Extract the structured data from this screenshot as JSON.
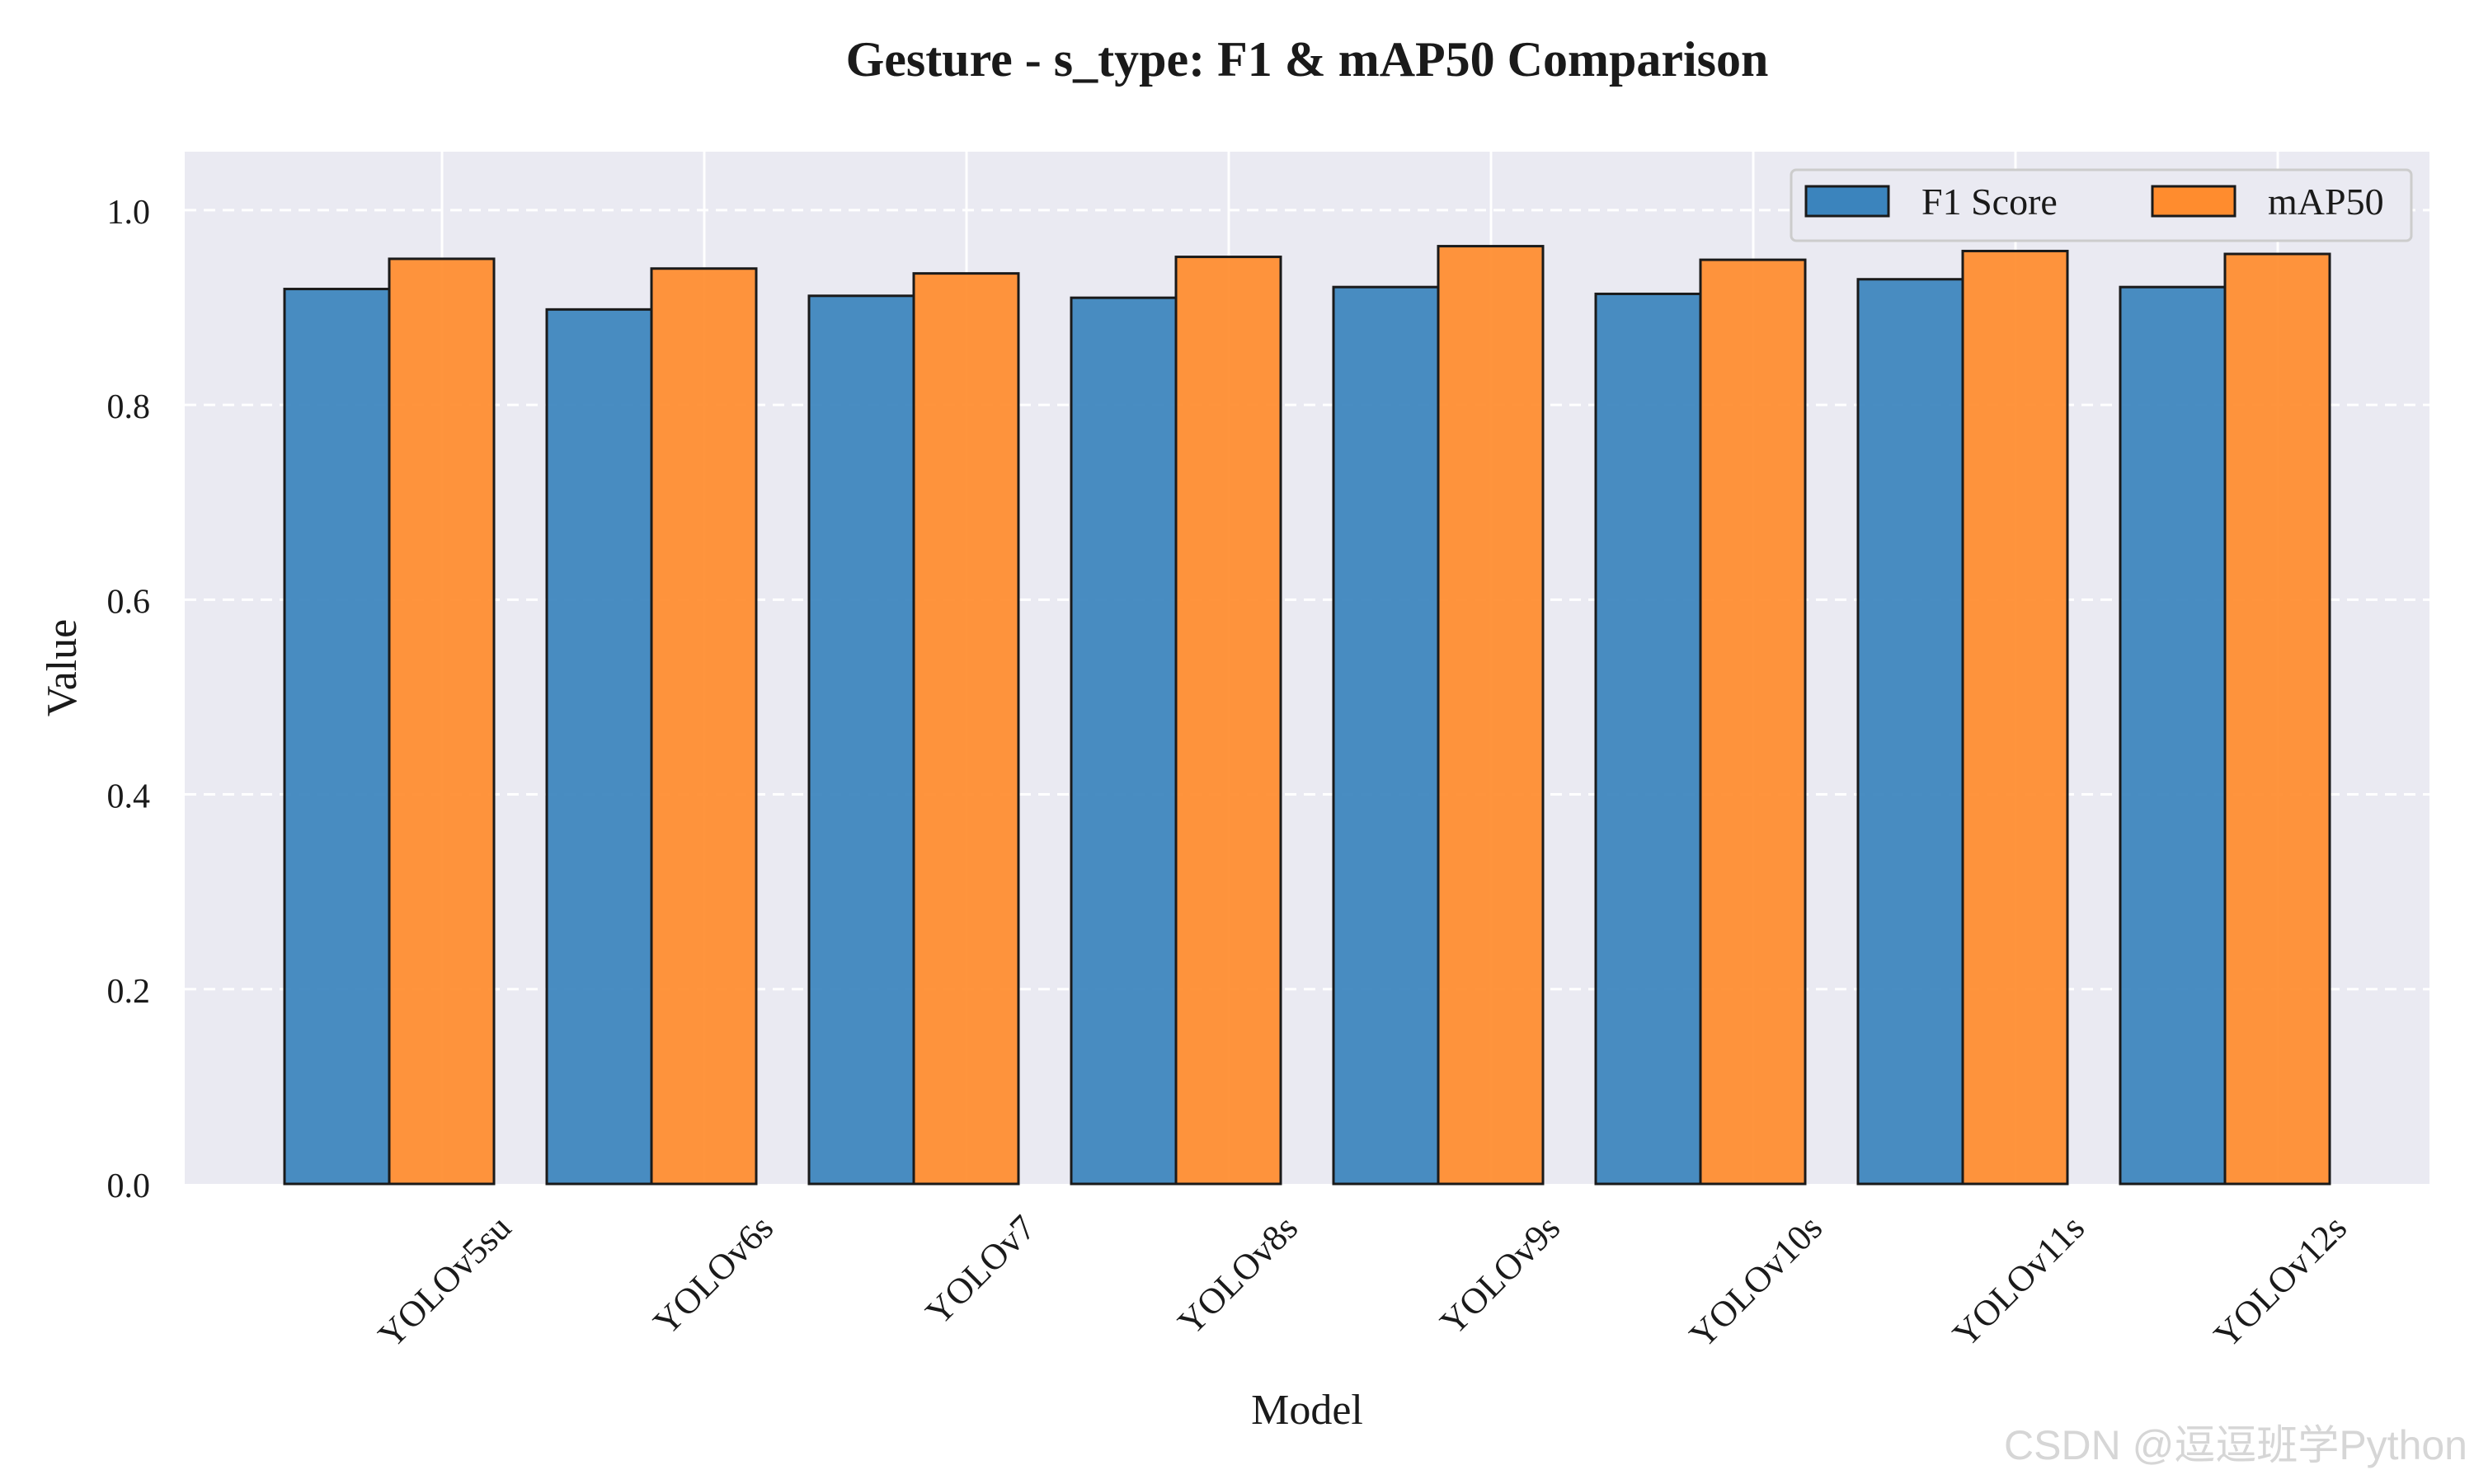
{
  "chart_data": {
    "type": "bar",
    "title": "Gesture - s_type: F1 & mAP50 Comparison",
    "xlabel": "Model",
    "ylabel": "Value",
    "ylim": [
      0,
      1.06
    ],
    "yticks": [
      "0.0",
      "0.2",
      "0.4",
      "0.6",
      "0.8",
      "1.0"
    ],
    "categories": [
      "YOLOv5su",
      "YOLOv6s",
      "YOLOv7",
      "YOLOv8s",
      "YOLOv9s",
      "YOLOv10s",
      "YOLOv11s",
      "YOLOv12s"
    ],
    "series": [
      {
        "name": "F1 Score",
        "color": "#3b84bd",
        "values": [
          0.919,
          0.898,
          0.912,
          0.91,
          0.921,
          0.914,
          0.929,
          0.921
        ]
      },
      {
        "name": "mAP50",
        "color": "#ff8c2e",
        "values": [
          0.95,
          0.94,
          0.935,
          0.952,
          0.963,
          0.949,
          0.958,
          0.955
        ]
      }
    ],
    "grid": true,
    "legend_position": "top-right",
    "plot_background": "#eaeaf2",
    "watermark": "CSDN @逗逗班学Python"
  }
}
